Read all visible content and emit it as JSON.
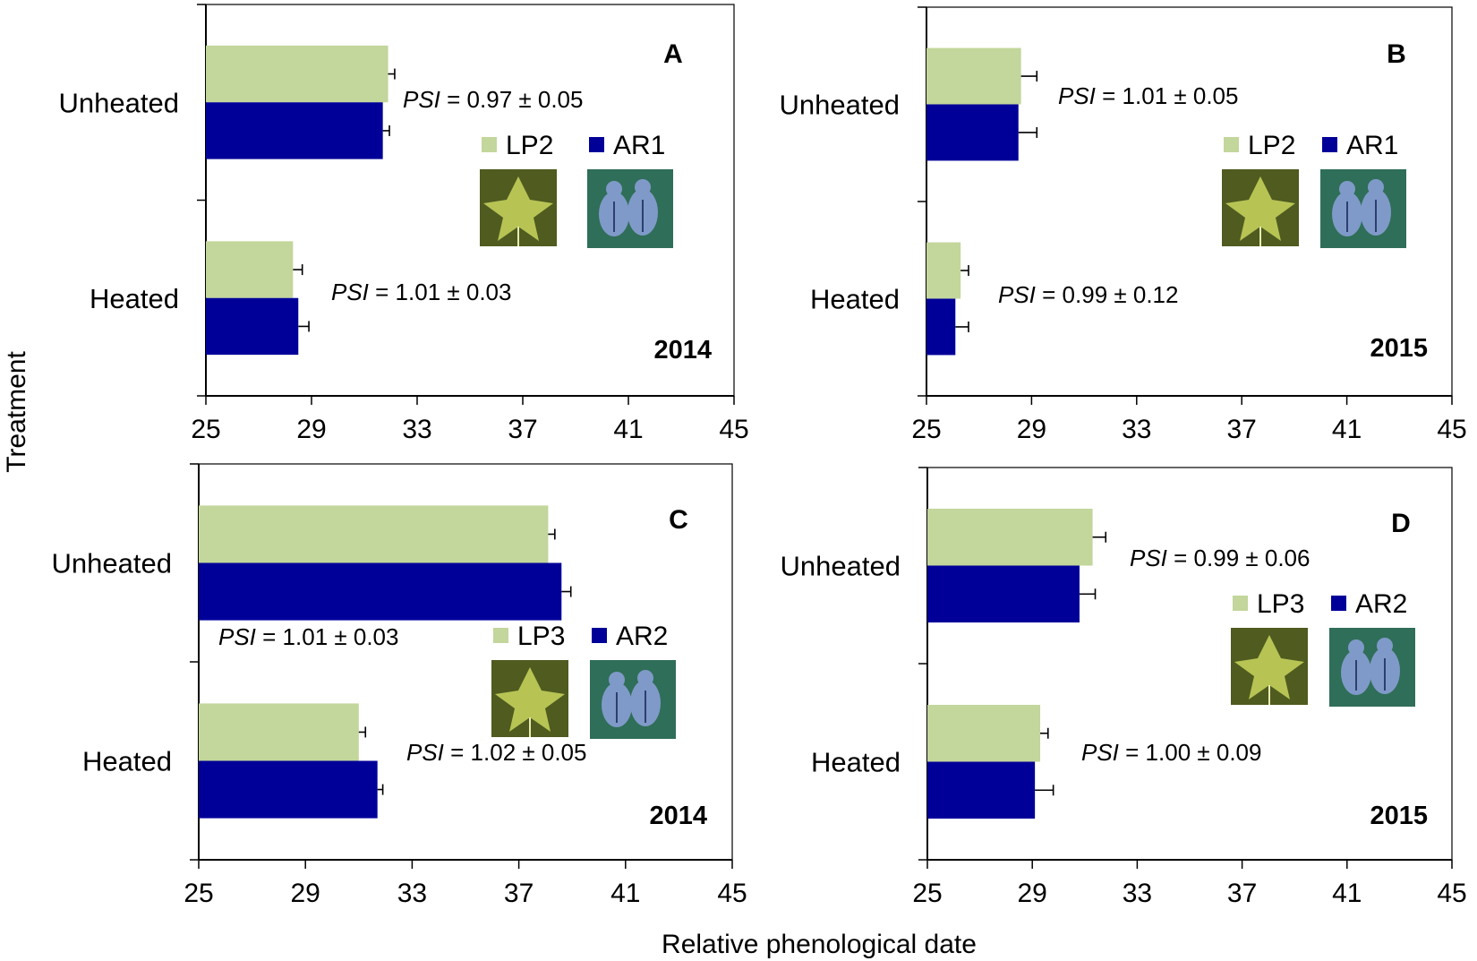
{
  "figure": {
    "y_axis_title": "Treatment",
    "x_axis_title": "Relative phenological date"
  },
  "colors": {
    "lp": "#c3d69b",
    "ar": "#000099",
    "leaf_dark": "#4f5b1f",
    "leaf_light": "#c2cf5a",
    "aphid_bg": "#2f6e58",
    "aphid_body": "#7f9ac8"
  },
  "icons": {
    "leaf": "leaf-photo-icon",
    "aphid": "aphid-photo-icon"
  },
  "chart_data": [
    {
      "type": "bar",
      "orientation": "horizontal",
      "panel": "A",
      "year": "2014",
      "categories": [
        "Unheated",
        "Heated"
      ],
      "series": [
        {
          "name": "LP2",
          "values": [
            31.9,
            28.3
          ],
          "errors": [
            0.25,
            0.35
          ],
          "color": "#c3d69b"
        },
        {
          "name": "AR1",
          "values": [
            31.7,
            28.5
          ],
          "errors": [
            0.25,
            0.4
          ],
          "color": "#000099"
        }
      ],
      "annotations": [
        {
          "category": "Unheated",
          "label": "PSI",
          "text": " = 0.97 ± 0.05"
        },
        {
          "category": "Heated",
          "label": "PSI",
          "text": " = 1.01 ± 0.03"
        }
      ],
      "xlim": [
        25,
        45
      ],
      "xticks": [
        "25",
        "29",
        "33",
        "37",
        "41",
        "45"
      ]
    },
    {
      "type": "bar",
      "orientation": "horizontal",
      "panel": "B",
      "year": "2015",
      "categories": [
        "Unheated",
        "Heated"
      ],
      "series": [
        {
          "name": "LP2",
          "values": [
            28.6,
            26.3
          ],
          "errors": [
            0.6,
            0.3
          ],
          "color": "#c3d69b"
        },
        {
          "name": "AR1",
          "values": [
            28.5,
            26.1
          ],
          "errors": [
            0.7,
            0.5
          ],
          "color": "#000099"
        }
      ],
      "annotations": [
        {
          "category": "Unheated",
          "label": "PSI",
          "text": " = 1.01 ± 0.05"
        },
        {
          "category": "Heated",
          "label": "PSI",
          "text": " = 0.99 ± 0.12"
        }
      ],
      "xlim": [
        25,
        45
      ],
      "xticks": [
        "25",
        "29",
        "33",
        "37",
        "41",
        "45"
      ]
    },
    {
      "type": "bar",
      "orientation": "horizontal",
      "panel": "C",
      "year": "2014",
      "categories": [
        "Unheated",
        "Heated"
      ],
      "series": [
        {
          "name": "LP3",
          "values": [
            38.1,
            31.0
          ],
          "errors": [
            0.25,
            0.25
          ],
          "color": "#c3d69b"
        },
        {
          "name": "AR2",
          "values": [
            38.6,
            31.7
          ],
          "errors": [
            0.35,
            0.2
          ],
          "color": "#000099"
        }
      ],
      "annotations": [
        {
          "category": "Unheated",
          "label": "PSI",
          "text": " = 1.01 ± 0.03"
        },
        {
          "category": "Heated",
          "label": "PSI",
          "text": " = 1.02 ± 0.05"
        }
      ],
      "xlim": [
        25,
        45
      ],
      "xticks": [
        "25",
        "29",
        "33",
        "37",
        "41",
        "45"
      ]
    },
    {
      "type": "bar",
      "orientation": "horizontal",
      "panel": "D",
      "year": "2015",
      "categories": [
        "Unheated",
        "Heated"
      ],
      "series": [
        {
          "name": "LP3",
          "values": [
            31.3,
            29.3
          ],
          "errors": [
            0.5,
            0.3
          ],
          "color": "#c3d69b"
        },
        {
          "name": "AR2",
          "values": [
            30.8,
            29.1
          ],
          "errors": [
            0.6,
            0.7
          ],
          "color": "#000099"
        }
      ],
      "annotations": [
        {
          "category": "Unheated",
          "label": "PSI",
          "text": " = 0.99 ± 0.06"
        },
        {
          "category": "Heated",
          "label": "PSI",
          "text": " = 1.00 ± 0.09"
        }
      ],
      "xlim": [
        25,
        45
      ],
      "xticks": [
        "25",
        "29",
        "33",
        "37",
        "41",
        "45"
      ]
    }
  ]
}
